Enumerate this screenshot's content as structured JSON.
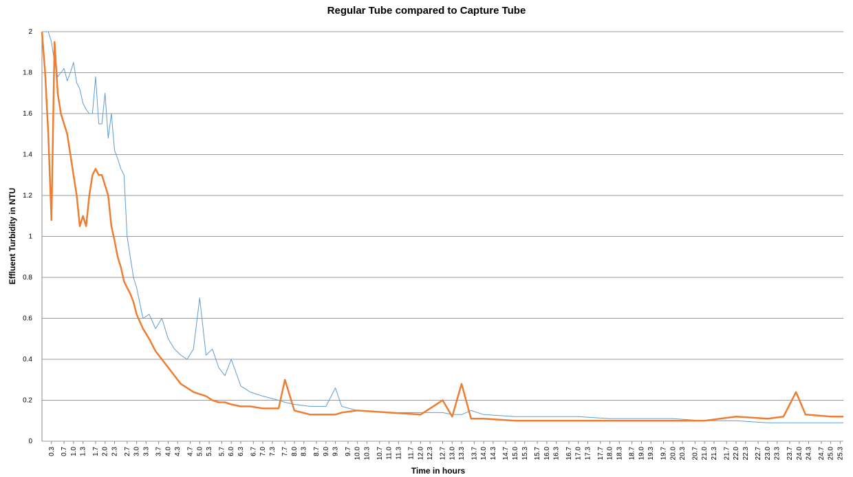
{
  "chart_data": {
    "type": "line",
    "title": "Regular Tube compared to Capture Tube",
    "x_label": "Time in hours",
    "y_label": "Effluent Turbidity in NTU",
    "x": [
      0,
      0.1,
      0.2,
      0.3,
      0.4,
      0.5,
      0.6,
      0.7,
      0.8,
      0.9,
      1.0,
      1.1,
      1.2,
      1.3,
      1.4,
      1.5,
      1.6,
      1.7,
      1.8,
      1.9,
      2.0,
      2.1,
      2.2,
      2.3,
      2.4,
      2.5,
      2.6,
      2.7,
      2.8,
      2.9,
      3.0,
      3.2,
      3.4,
      3.6,
      3.8,
      4.0,
      4.2,
      4.4,
      4.6,
      4.8,
      5.0,
      5.2,
      5.4,
      5.6,
      5.8,
      6.0,
      6.3,
      6.6,
      7.0,
      7.5,
      7.7,
      8.0,
      8.5,
      9.0,
      9.3,
      9.5,
      10,
      11,
      12,
      12.7,
      13,
      13.3,
      13.6,
      14,
      15,
      16,
      17,
      18,
      19,
      20,
      21,
      22,
      23,
      23.5,
      23.9,
      24.2,
      25,
      25.4
    ],
    "series": [
      {
        "color": "#5b9bd5",
        "width": 1,
        "values": [
          2.0,
          2.0,
          2.0,
          1.95,
          1.85,
          1.78,
          1.8,
          1.82,
          1.76,
          1.8,
          1.85,
          1.75,
          1.72,
          1.65,
          1.62,
          1.6,
          1.6,
          1.78,
          1.55,
          1.55,
          1.7,
          1.48,
          1.6,
          1.42,
          1.38,
          1.33,
          1.3,
          1.0,
          0.9,
          0.8,
          0.75,
          0.6,
          0.62,
          0.55,
          0.6,
          0.5,
          0.45,
          0.42,
          0.4,
          0.45,
          0.7,
          0.42,
          0.45,
          0.36,
          0.32,
          0.4,
          0.27,
          0.24,
          0.22,
          0.2,
          0.19,
          0.18,
          0.17,
          0.17,
          0.26,
          0.17,
          0.15,
          0.14,
          0.14,
          0.14,
          0.13,
          0.13,
          0.15,
          0.13,
          0.12,
          0.12,
          0.12,
          0.11,
          0.11,
          0.11,
          0.1,
          0.1,
          0.09,
          0.09,
          0.09,
          0.09,
          0.09,
          0.09
        ]
      },
      {
        "color": "#ed7d31",
        "width": 2.5,
        "values": [
          2.0,
          1.8,
          1.5,
          1.08,
          1.95,
          1.7,
          1.6,
          1.55,
          1.5,
          1.4,
          1.3,
          1.2,
          1.05,
          1.1,
          1.05,
          1.2,
          1.3,
          1.33,
          1.3,
          1.3,
          1.25,
          1.2,
          1.05,
          0.98,
          0.9,
          0.85,
          0.78,
          0.75,
          0.72,
          0.68,
          0.62,
          0.55,
          0.5,
          0.44,
          0.4,
          0.36,
          0.32,
          0.28,
          0.26,
          0.24,
          0.23,
          0.22,
          0.2,
          0.19,
          0.19,
          0.18,
          0.17,
          0.17,
          0.16,
          0.16,
          0.3,
          0.15,
          0.13,
          0.13,
          0.13,
          0.14,
          0.15,
          0.14,
          0.13,
          0.2,
          0.12,
          0.28,
          0.11,
          0.11,
          0.1,
          0.1,
          0.1,
          0.1,
          0.1,
          0.1,
          0.1,
          0.12,
          0.11,
          0.12,
          0.24,
          0.13,
          0.12,
          0.12
        ]
      }
    ],
    "xlim": [
      0,
      25.4
    ],
    "xticks": [
      0.3,
      0.7,
      {
        "value": 1,
        "label": "1.0"
      },
      1.3,
      1.7,
      {
        "value": 2,
        "label": "2.0"
      },
      2.3,
      2.7,
      {
        "value": 3,
        "label": "3.0"
      },
      3.3,
      3.7,
      {
        "value": 4,
        "label": "4.0"
      },
      4.3,
      4.7,
      {
        "value": 5,
        "label": "5.0"
      },
      5.3,
      5.7,
      {
        "value": 6,
        "label": "6.0"
      },
      6.3,
      6.7,
      {
        "value": 7,
        "label": "7.0"
      },
      7.3,
      7.7,
      {
        "value": 8,
        "label": "8.0"
      },
      8.3,
      8.7,
      {
        "value": 9,
        "label": "9.0"
      },
      9.3,
      9.7,
      {
        "value": 10,
        "label": "10.0"
      },
      10.3,
      10.7,
      {
        "value": 11,
        "label": "11.0"
      },
      11.3,
      11.7,
      {
        "value": 12,
        "label": "12.0"
      },
      12.3,
      12.7,
      {
        "value": 13,
        "label": "13.0"
      },
      13.3,
      13.7,
      {
        "value": 14,
        "label": "14.0"
      },
      14.3,
      14.7,
      {
        "value": 15,
        "label": "15.0"
      },
      15.3,
      15.7,
      {
        "value": 16,
        "label": "16.0"
      },
      16.3,
      16.7,
      {
        "value": 17,
        "label": "17.0"
      },
      17.3,
      17.7,
      {
        "value": 18,
        "label": "18.0"
      },
      18.3,
      18.7,
      {
        "value": 19,
        "label": "19.0"
      },
      19.3,
      19.7,
      {
        "value": 20,
        "label": "20.0"
      },
      20.3,
      20.7,
      {
        "value": 21,
        "label": "21.0"
      },
      21.3,
      21.7,
      {
        "value": 22,
        "label": "22.0"
      },
      22.3,
      22.7,
      {
        "value": 23,
        "label": "23.0"
      },
      23.3,
      23.7,
      {
        "value": 24,
        "label": "24.0"
      },
      24.3,
      24.7,
      {
        "value": 25,
        "label": "25.0"
      },
      25.3
    ],
    "ylim": [
      0,
      2
    ],
    "yticks": [
      0,
      0.2,
      0.4,
      0.6,
      0.8,
      1,
      1.2,
      1.4,
      1.6,
      1.8,
      2
    ],
    "grid": true
  }
}
